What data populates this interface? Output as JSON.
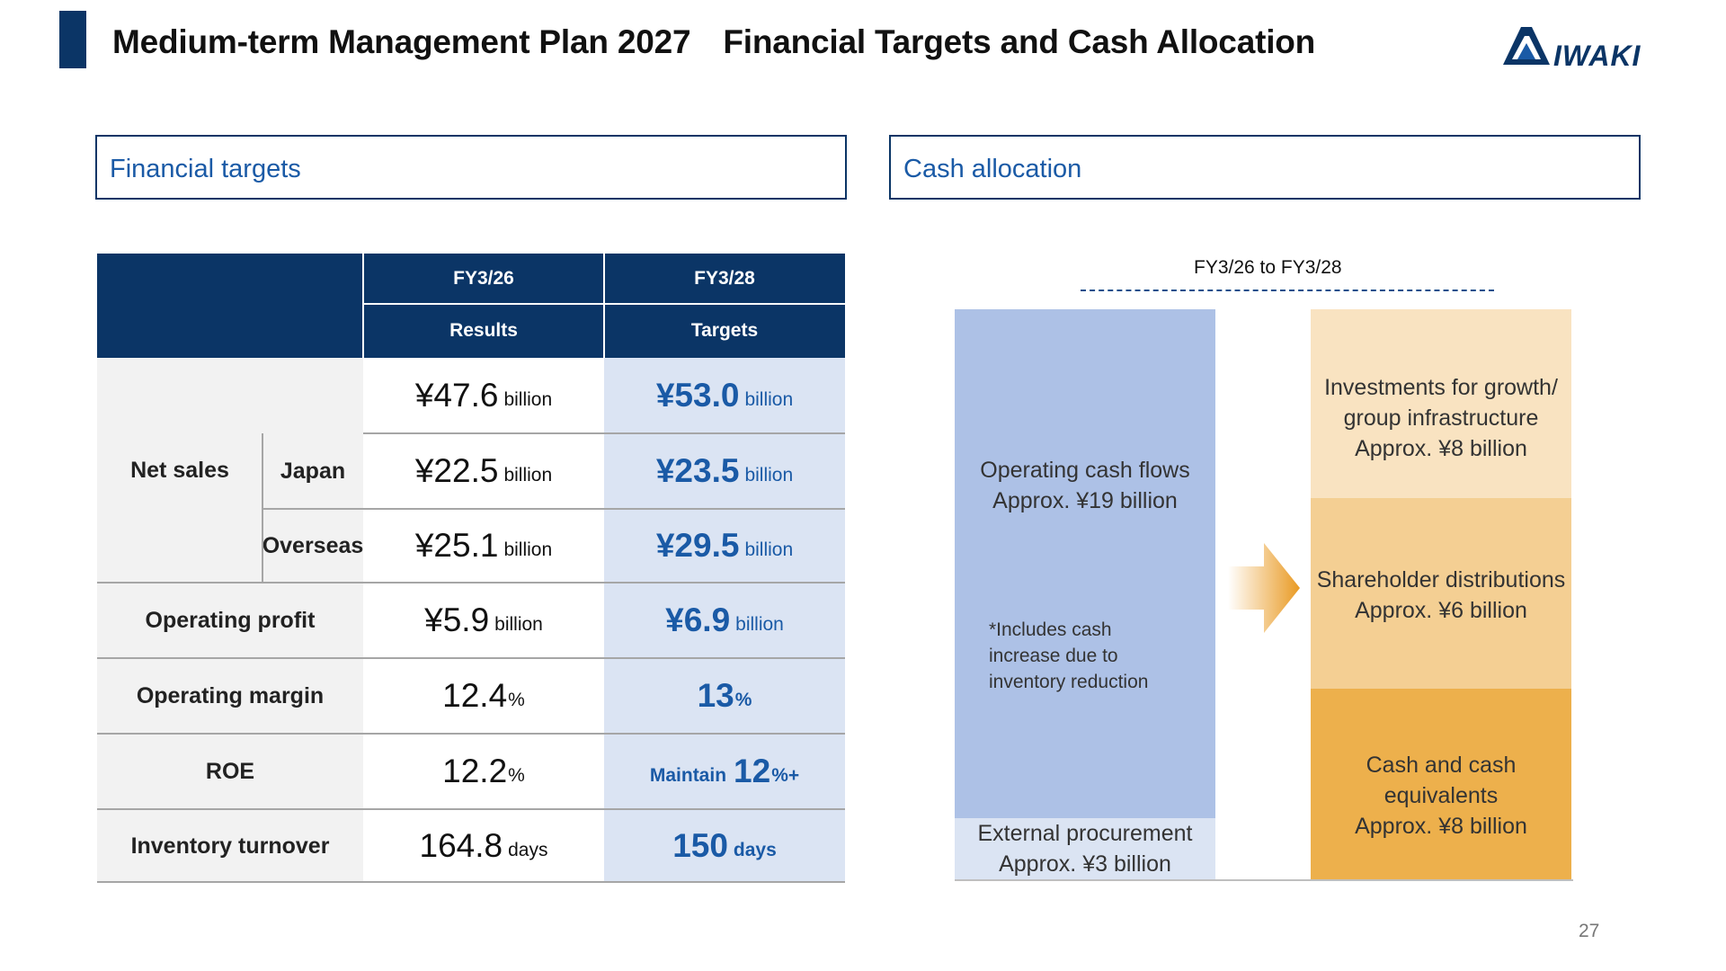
{
  "header": {
    "title_part1": "Medium-term Management Plan 2027",
    "title_part2": "Financial Targets and Cash Allocation",
    "logo_text": "IWAKI"
  },
  "sections": {
    "left_title": "Financial targets",
    "right_title": "Cash allocation"
  },
  "table": {
    "col_headers": [
      {
        "period": "FY3/26",
        "kind": "Results"
      },
      {
        "period": "FY3/28",
        "kind": "Targets"
      }
    ],
    "rows": {
      "net_sales": {
        "label": "Net sales",
        "total": {
          "result": "¥47.6",
          "result_unit": "billion",
          "target": "¥53.0",
          "target_unit": "billion"
        },
        "japan": {
          "label": "Japan",
          "result": "¥22.5",
          "result_unit": "billion",
          "target": "¥23.5",
          "target_unit": "billion"
        },
        "overseas": {
          "label": "Overseas",
          "result": "¥25.1",
          "result_unit": "billion",
          "target": "¥29.5",
          "target_unit": "billion"
        }
      },
      "operating_profit": {
        "label": "Operating profit",
        "result": "¥5.9",
        "result_unit": "billion",
        "target": "¥6.9",
        "target_unit": "billion"
      },
      "operating_margin": {
        "label": "Operating margin",
        "result": "12.4",
        "result_unit": "%",
        "target": "13",
        "target_unit": "%"
      },
      "roe": {
        "label": "ROE",
        "result": "12.2",
        "result_unit": "%",
        "target_prefix": "Maintain",
        "target": "12",
        "target_unit": "%+"
      },
      "inventory_turnover": {
        "label": "Inventory turnover",
        "result": "164.8",
        "result_unit": "days",
        "target": "150",
        "target_unit": "days"
      }
    }
  },
  "cash": {
    "period_label": "FY3/26 to FY3/28",
    "sources": {
      "operating_cf": {
        "line1": "Operating cash flows",
        "line2": "Approx. ¥19 billion"
      },
      "note": [
        "*Includes cash",
        "increase due to",
        "inventory reduction"
      ],
      "external": {
        "line1": "External procurement",
        "line2": "Approx. ¥3 billion"
      }
    },
    "uses": {
      "investments": {
        "line1": "Investments for growth/",
        "line2": "group infrastructure",
        "line3": "Approx. ¥8 billion"
      },
      "shareholder": {
        "line1": "Shareholder distributions",
        "line2": "Approx. ¥6 billion"
      },
      "cash_equivalents": {
        "line1": "Cash and cash",
        "line2": "equivalents",
        "line3": "Approx. ¥8 billion"
      }
    },
    "colors": {
      "operating_cf": "#adc1e6",
      "external": "#dbe4f3",
      "investments": "#f9e3c1",
      "shareholder": "#f4cf93",
      "cash_equivalents": "#edb04c",
      "arrow": "#e99a23"
    }
  },
  "page_number": "27"
}
